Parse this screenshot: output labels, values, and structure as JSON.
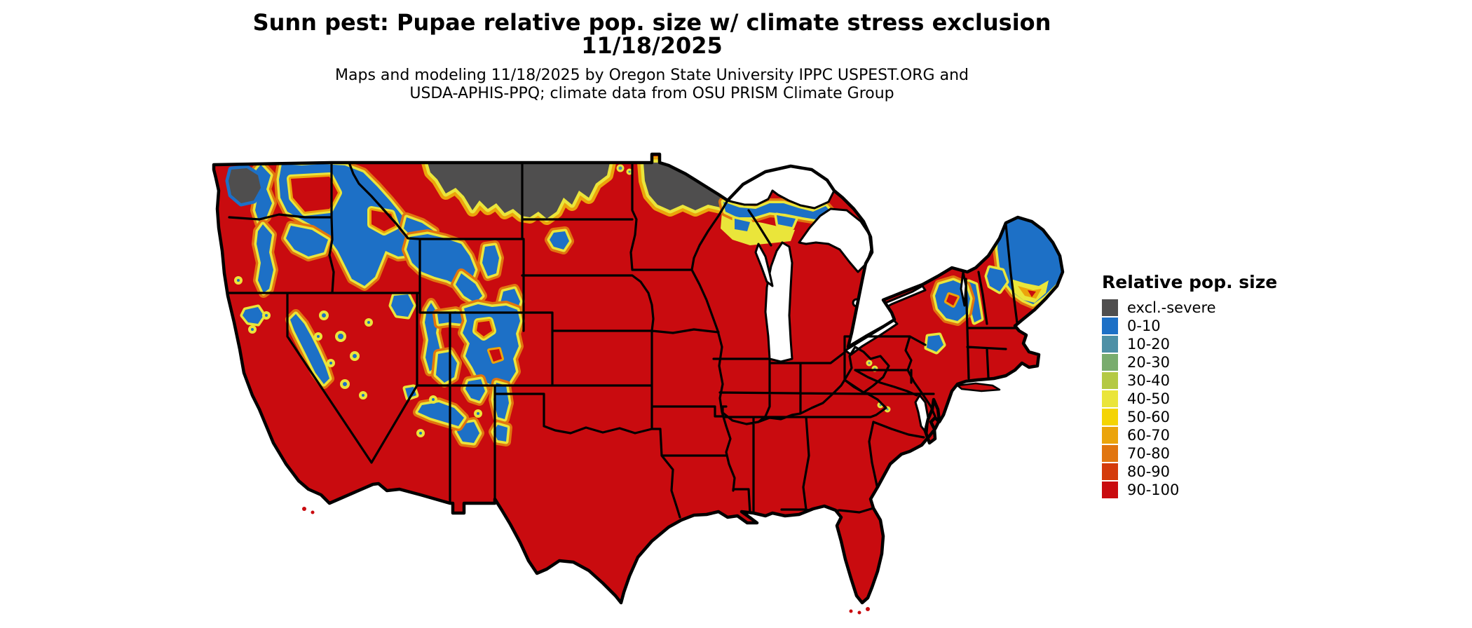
{
  "header": {
    "title_line1": "Sunn pest: Pupae relative pop. size w/ climate stress exclusion",
    "title_line2": "11/18/2025",
    "subtitle_line1": "Maps and modeling 11/18/2025 by Oregon State University IPPC USPEST.ORG and",
    "subtitle_line2": "USDA-APHIS-PPQ; climate data from OSU PRISM Climate Group"
  },
  "legend": {
    "title": "Relative pop. size",
    "entries": [
      {
        "label": "excl.-severe",
        "key": "excl"
      },
      {
        "label": "0-10",
        "key": "p0_10"
      },
      {
        "label": "10-20",
        "key": "p10_20"
      },
      {
        "label": "20-30",
        "key": "p20_30"
      },
      {
        "label": "30-40",
        "key": "p30_40"
      },
      {
        "label": "40-50",
        "key": "p40_50"
      },
      {
        "label": "50-60",
        "key": "p50_60"
      },
      {
        "label": "60-70",
        "key": "p60_70"
      },
      {
        "label": "70-80",
        "key": "p70_80"
      },
      {
        "label": "80-90",
        "key": "p80_90"
      },
      {
        "label": "90-100",
        "key": "p90_100"
      }
    ]
  },
  "palette": {
    "excl": "#4f4e4e",
    "p0_10": "#1d70c6",
    "p10_20": "#4d90a6",
    "p20_30": "#79ac6e",
    "p30_40": "#b4c944",
    "p40_50": "#eae53a",
    "p50_60": "#f4d403",
    "p60_70": "#eba40b",
    "p70_80": "#e1750f",
    "p80_90": "#d43b0b",
    "p90_100": "#c90b0f"
  },
  "map": {
    "region": "Contiguous United States",
    "water_color": "#ffffff",
    "border_color": "#000000"
  }
}
